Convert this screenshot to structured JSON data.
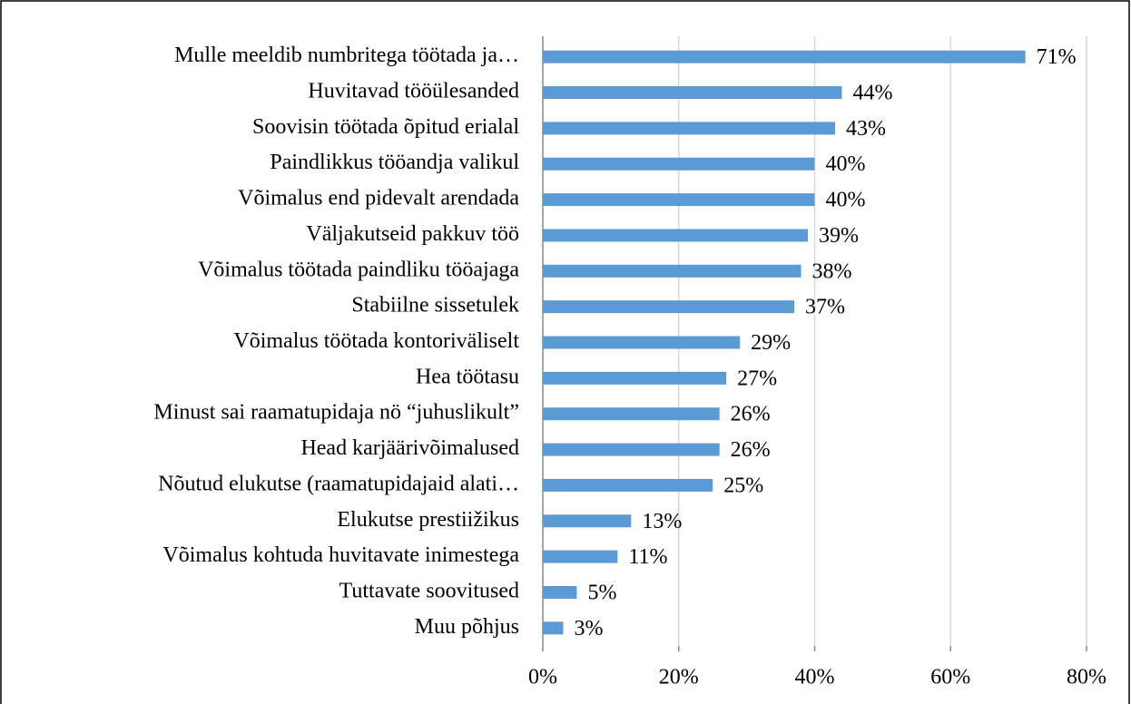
{
  "chart_data": {
    "type": "bar",
    "orientation": "horizontal",
    "categories": [
      "Mulle meeldib numbritega töötada ja…",
      "Huvitavad tööülesanded",
      "Soovisin töötada õpitud erialal",
      "Paindlikkus tööandja valikul",
      "Võimalus end pidevalt arendada",
      "Väljakutseid pakkuv töö",
      "Võimalus töötada paindliku tööajaga",
      "Stabiilne sissetulek",
      "Võimalus töötada kontoriväliselt",
      "Hea töötasu",
      "Minust sai raamatupidaja nö “juhuslikult”",
      "Head karjäärivõimalused",
      "Nõutud elukutse (raamatupidajaid alati…",
      "Elukutse prestiižikus",
      "Võimalus kohtuda huvitavate inimestega",
      "Tuttavate soovitused",
      "Muu põhjus"
    ],
    "values": [
      71,
      44,
      43,
      40,
      40,
      39,
      38,
      37,
      29,
      27,
      26,
      26,
      25,
      13,
      11,
      5,
      3
    ],
    "value_labels": [
      "71%",
      "44%",
      "43%",
      "40%",
      "40%",
      "39%",
      "38%",
      "37%",
      "29%",
      "27%",
      "26%",
      "26%",
      "25%",
      "13%",
      "11%",
      "5%",
      "3%"
    ],
    "color": "#5b9bd5",
    "xlim": [
      0,
      80
    ],
    "xticks": [
      {
        "value": 0,
        "label": "0%"
      },
      {
        "value": 20,
        "label": "20%"
      },
      {
        "value": 40,
        "label": "40%"
      },
      {
        "value": 60,
        "label": "60%"
      },
      {
        "value": 80,
        "label": "80%"
      }
    ],
    "grid": true
  }
}
